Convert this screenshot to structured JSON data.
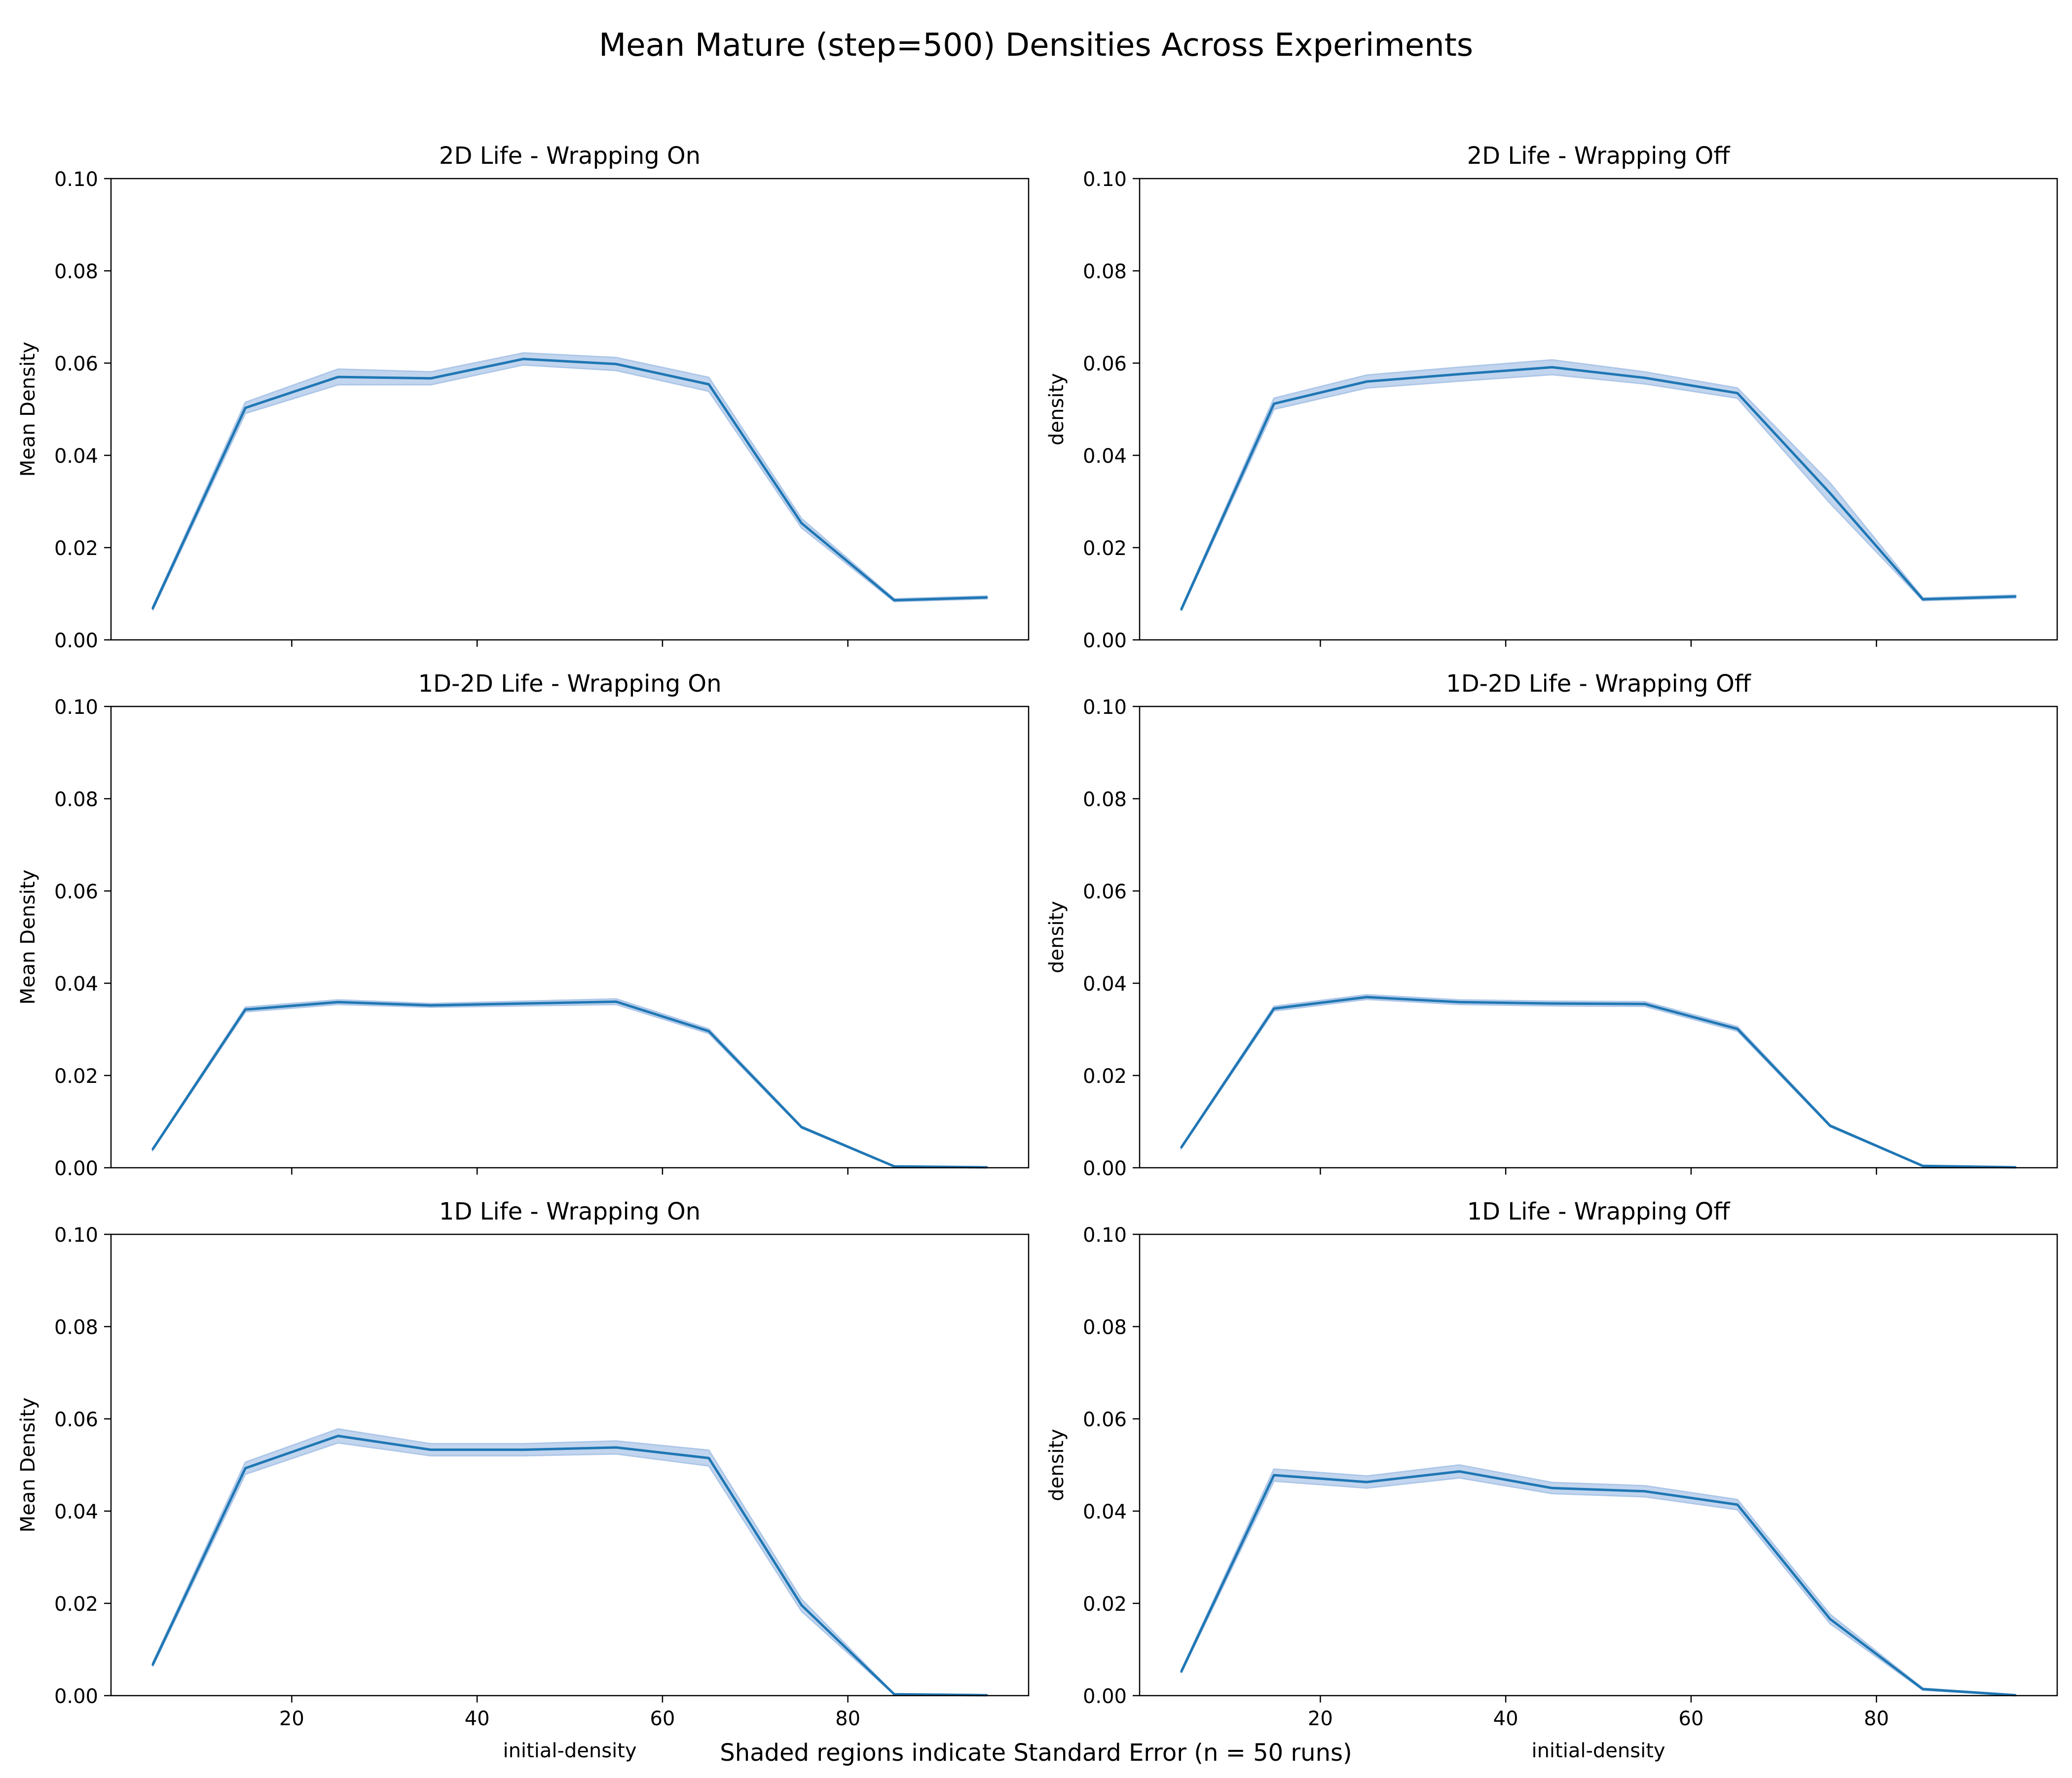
{
  "figure": {
    "title": "Mean Mature (step=500) Densities Across Experiments",
    "caption": "Shaded regions indicate Standard Error (n = 50 runs)",
    "line_color": "#1f77b4",
    "band_color": "#aec7e8"
  },
  "chart_data": [
    {
      "type": "line",
      "title": "2D Life - Wrapping On",
      "xlabel": "",
      "ylabel": "Mean Density",
      "xlim": [
        0.5,
        99.5
      ],
      "ylim": [
        0,
        0.1
      ],
      "xticks": [],
      "yticks": [
        "0.00",
        "0.02",
        "0.04",
        "0.06",
        "0.08",
        "0.10"
      ],
      "x": [
        5,
        15,
        25,
        35,
        45,
        55,
        65,
        75,
        85,
        95
      ],
      "y": [
        0.0068,
        0.0503,
        0.057,
        0.0567,
        0.0609,
        0.0598,
        0.0554,
        0.0253,
        0.0086,
        0.0092
      ],
      "y_err": [
        0.0004,
        0.0012,
        0.0017,
        0.0014,
        0.0013,
        0.0014,
        0.0015,
        0.001,
        0.0003,
        0.0003
      ]
    },
    {
      "type": "line",
      "title": "2D Life - Wrapping Off",
      "xlabel": "",
      "ylabel": "density",
      "xlim": [
        0.5,
        99.5
      ],
      "ylim": [
        0,
        0.1
      ],
      "xticks": [],
      "yticks": [
        "0.00",
        "0.02",
        "0.04",
        "0.06",
        "0.08",
        "0.10"
      ],
      "x": [
        5,
        15,
        25,
        35,
        45,
        55,
        65,
        75,
        85,
        95
      ],
      "y": [
        0.0066,
        0.0512,
        0.056,
        0.0576,
        0.0591,
        0.0568,
        0.0535,
        0.0318,
        0.0088,
        0.0094
      ],
      "y_err": [
        0.0003,
        0.0012,
        0.0014,
        0.0015,
        0.0016,
        0.0013,
        0.0011,
        0.0022,
        0.0003,
        0.0003
      ]
    },
    {
      "type": "line",
      "title": "1D-2D Life - Wrapping On",
      "xlabel": "",
      "ylabel": "Mean Density",
      "xlim": [
        0.5,
        99.5
      ],
      "ylim": [
        0,
        0.1
      ],
      "xticks": [],
      "yticks": [
        "0.00",
        "0.02",
        "0.04",
        "0.06",
        "0.08",
        "0.10"
      ],
      "x": [
        5,
        15,
        25,
        35,
        45,
        55,
        65,
        75,
        85,
        95
      ],
      "y": [
        0.004,
        0.0343,
        0.0359,
        0.0352,
        0.0356,
        0.036,
        0.0296,
        0.0088,
        0.0003,
        0.0001
      ],
      "y_err": [
        0.0002,
        0.0005,
        0.0005,
        0.0004,
        0.0005,
        0.0006,
        0.0005,
        0.0002,
        0.0001,
        0.0001
      ]
    },
    {
      "type": "line",
      "title": "1D-2D Life - Wrapping Off",
      "xlabel": "",
      "ylabel": "density",
      "xlim": [
        0.5,
        99.5
      ],
      "ylim": [
        0,
        0.1
      ],
      "xticks": [],
      "yticks": [
        "0.00",
        "0.02",
        "0.04",
        "0.06",
        "0.08",
        "0.10"
      ],
      "x": [
        5,
        15,
        25,
        35,
        45,
        55,
        65,
        75,
        85,
        95
      ],
      "y": [
        0.0044,
        0.0345,
        0.037,
        0.0359,
        0.0356,
        0.0355,
        0.0301,
        0.0091,
        0.0004,
        0.0001
      ],
      "y_err": [
        0.0002,
        0.0005,
        0.0005,
        0.0005,
        0.0005,
        0.0005,
        0.0005,
        0.0002,
        0.0001,
        0.0001
      ]
    },
    {
      "type": "line",
      "title": "1D Life - Wrapping On",
      "xlabel": "initial-density",
      "ylabel": "Mean Density",
      "xlim": [
        0.5,
        99.5
      ],
      "ylim": [
        0,
        0.1
      ],
      "xticks": [
        "20",
        "40",
        "60",
        "80"
      ],
      "yticks": [
        "0.00",
        "0.02",
        "0.04",
        "0.06",
        "0.08",
        "0.10"
      ],
      "x": [
        5,
        15,
        25,
        35,
        45,
        55,
        65,
        75,
        85,
        95
      ],
      "y": [
        0.0067,
        0.0493,
        0.0563,
        0.0533,
        0.0533,
        0.0538,
        0.0515,
        0.0196,
        0.0003,
        0.0001
      ],
      "y_err": [
        0.0004,
        0.0013,
        0.0015,
        0.0013,
        0.0013,
        0.0014,
        0.0017,
        0.0013,
        0.0001,
        0.0001
      ]
    },
    {
      "type": "line",
      "title": "1D Life - Wrapping Off",
      "xlabel": "initial-density",
      "ylabel": "density",
      "xlim": [
        0.5,
        99.5
      ],
      "ylim": [
        0,
        0.1
      ],
      "xticks": [
        "20",
        "40",
        "60",
        "80"
      ],
      "yticks": [
        "0.00",
        "0.02",
        "0.04",
        "0.06",
        "0.08",
        "0.10"
      ],
      "x": [
        5,
        15,
        25,
        35,
        45,
        55,
        65,
        75,
        85,
        95
      ],
      "y": [
        0.0052,
        0.0478,
        0.0463,
        0.0486,
        0.045,
        0.0443,
        0.0414,
        0.0166,
        0.0014,
        0.0001
      ],
      "y_err": [
        0.0003,
        0.0013,
        0.0013,
        0.0014,
        0.0012,
        0.0012,
        0.0011,
        0.001,
        0.0002,
        0.0001
      ]
    }
  ]
}
